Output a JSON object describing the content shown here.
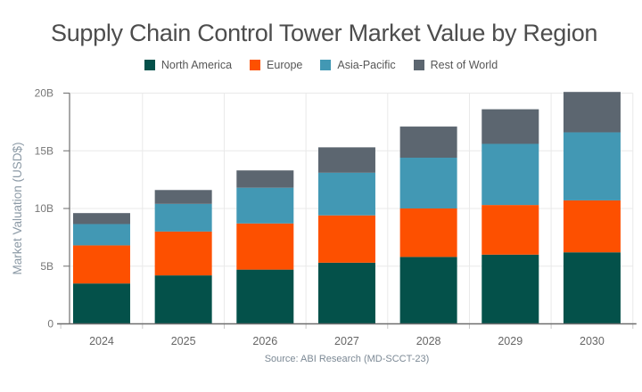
{
  "title": "Supply Chain Control Tower Market Value by Region",
  "chart_data": {
    "type": "bar",
    "stacked": true,
    "title": "Supply Chain Control Tower Market Value by Region",
    "categories": [
      "2024",
      "2025",
      "2026",
      "2027",
      "2028",
      "2029",
      "2030"
    ],
    "series": [
      {
        "name": "North America",
        "color": "#04514a",
        "values": [
          3.5,
          4.2,
          4.7,
          5.3,
          5.8,
          6.0,
          6.2
        ]
      },
      {
        "name": "Europe",
        "color": "#fd5000",
        "values": [
          3.3,
          3.8,
          4.0,
          4.1,
          4.2,
          4.3,
          4.5
        ]
      },
      {
        "name": "Asia-Pacific",
        "color": "#4298b4",
        "values": [
          1.85,
          2.4,
          3.1,
          3.7,
          4.4,
          5.3,
          5.9
        ]
      },
      {
        "name": "Rest of World",
        "color": "#5c6670",
        "values": [
          0.95,
          1.2,
          1.5,
          2.2,
          2.7,
          3.0,
          3.5
        ]
      }
    ],
    "totals": [
      9.6,
      11.6,
      13.3,
      15.3,
      17.1,
      18.6,
      20.1
    ],
    "xlabel": "",
    "ylabel": "Market Valuation (USD$)",
    "y_ticks": [
      "0",
      "5B",
      "10B",
      "15B",
      "20B"
    ],
    "y_tick_values": [
      0,
      5,
      10,
      15,
      20
    ],
    "ylim": [
      0,
      20
    ],
    "grid": true,
    "legend_position": "top",
    "source": "Source: ABI Research (MD-SCCT-23)"
  },
  "style_colors": {
    "title_text": "#4d4d4d",
    "legend_text": "#565656",
    "x_tick_text": "#666666",
    "y_tick_text": "#777777",
    "gridline": "#e9e9e9",
    "axis_line": "#6e6e6e",
    "minor_tick": "#c9c9c9",
    "y_axis_title_text": "#8c9aa6",
    "source_text": "#7c8995"
  }
}
